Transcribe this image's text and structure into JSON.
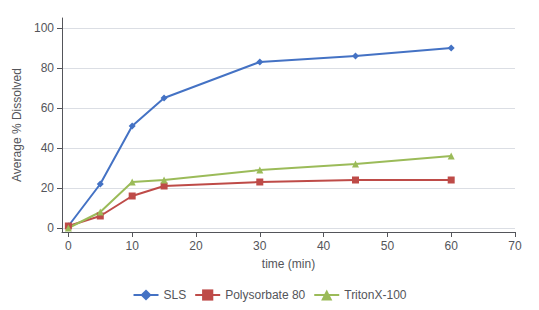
{
  "chart_data": {
    "type": "line",
    "xlabel": "time (min)",
    "ylabel": "Average % Dissolved",
    "x": [
      0,
      5,
      10,
      15,
      30,
      45,
      60
    ],
    "series": [
      {
        "name": "SLS",
        "color": "#4472C4",
        "marker": "diamond",
        "values": [
          1,
          22,
          51,
          65,
          83,
          86,
          90
        ]
      },
      {
        "name": "Polysorbate 80",
        "color": "#BE4B48",
        "marker": "square",
        "values": [
          1,
          6,
          16,
          21,
          23,
          24,
          24
        ]
      },
      {
        "name": "TritonX-100",
        "color": "#9BBB59",
        "marker": "triangle",
        "values": [
          0,
          8,
          23,
          24,
          29,
          32,
          36
        ]
      }
    ],
    "xlim": [
      -1,
      70
    ],
    "ylim": [
      -2,
      105
    ],
    "xticks": [
      0,
      10,
      20,
      30,
      40,
      50,
      60,
      70
    ],
    "yticks": [
      0,
      20,
      40,
      60,
      80,
      100
    ],
    "grid": "y",
    "legend": "bottom"
  }
}
